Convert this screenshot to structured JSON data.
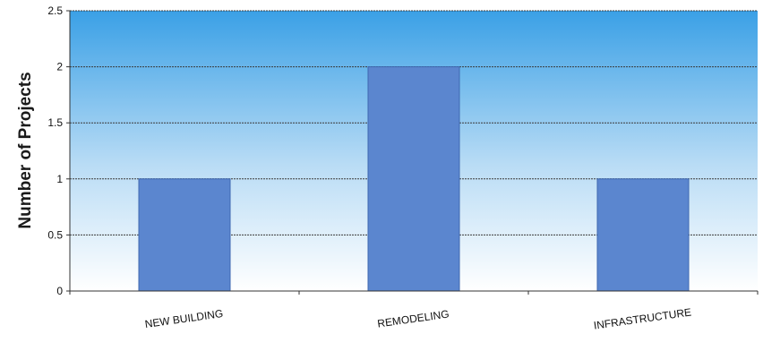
{
  "chart_data": {
    "type": "bar",
    "categories": [
      "NEW BUILDING",
      "REMODELING",
      "INFRASTRUCTURE"
    ],
    "values": [
      1,
      2,
      1
    ],
    "title": "",
    "xlabel": "",
    "ylabel": "Number of Projects",
    "ylim": [
      0,
      2.5
    ],
    "yticks": [
      "0",
      "0.5",
      "1",
      "1.5",
      "2",
      "2.5"
    ],
    "grid": true,
    "legend": "none",
    "colors": {
      "bar_fill": "#5b86cf",
      "bar_stroke": "#3f68b0",
      "bg_top": "#3aa0e6",
      "bg_bottom": "#ffffff",
      "grid": "#3b3b3b"
    }
  }
}
